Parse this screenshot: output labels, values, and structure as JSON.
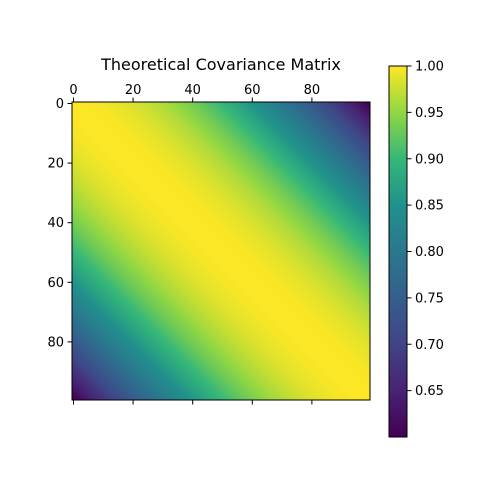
{
  "chart_data": {
    "type": "heatmap",
    "title": "Theoretical Covariance Matrix",
    "matrix_size": 100,
    "x_ticks": [
      0,
      20,
      40,
      60,
      80
    ],
    "y_ticks": [
      0,
      20,
      40,
      60,
      80
    ],
    "x_tick_labels": [
      "0",
      "20",
      "40",
      "60",
      "80"
    ],
    "y_tick_labels": [
      "0",
      "20",
      "40",
      "60",
      "80"
    ],
    "x_axis_position": "top",
    "value_model": {
      "form": "1 - k * |i - j|^2",
      "k": 4.08e-05,
      "diagonal_value": 1.0,
      "corner_value": 0.6
    },
    "colorbar": {
      "colormap": "viridis",
      "vmin": 0.6,
      "vmax": 1.0,
      "ticks": [
        0.65,
        0.7,
        0.75,
        0.8,
        0.85,
        0.9,
        0.95,
        1.0
      ],
      "tick_labels": [
        "0.65",
        "0.70",
        "0.75",
        "0.80",
        "0.85",
        "0.90",
        "0.95",
        "1.00"
      ]
    },
    "grid": false
  }
}
